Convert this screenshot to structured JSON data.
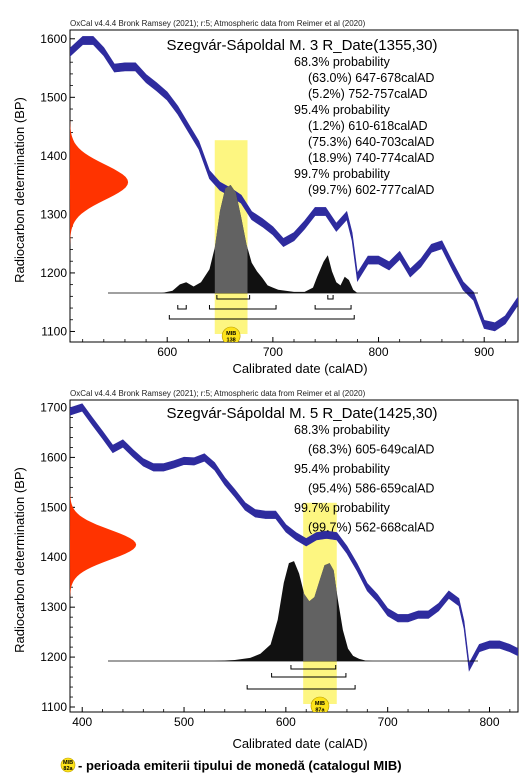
{
  "chart_data": [
    {
      "type": "area",
      "header": "OxCal v4.4.4 Bronk Ramsey (2021); r:5; Atmospheric data from Reimer et al (2020)",
      "title": "Szegvár-Sápoldal M. 3 R_Date(1355,30)",
      "probability_lines": [
        "68.3% probability",
        "(63.0%) 647-678calAD",
        "(5.2%) 752-757calAD",
        "95.4% probability",
        "(1.2%) 610-618calAD",
        "(75.3%) 640-703calAD",
        "(18.9%) 740-774calAD",
        "99.7% probability",
        "(99.7%) 602-777calAD"
      ],
      "xlabel": "Calibrated date (calAD)",
      "ylabel": "Radiocarbon determination (BP)",
      "xlim": [
        508,
        932
      ],
      "ylim": [
        1082,
        1615
      ],
      "xticks": [
        600,
        700,
        800,
        900
      ],
      "yticks": [
        1100,
        1200,
        1300,
        1400,
        1500,
        1600
      ],
      "radiocarbon_date": {
        "bp": 1355,
        "error": 30
      },
      "calibration_curve": {
        "color": "#2e2b9e",
        "x": [
          508,
          520,
          530,
          540,
          550,
          560,
          570,
          580,
          590,
          600,
          610,
          620,
          630,
          640,
          650,
          660,
          670,
          680,
          690,
          700,
          710,
          720,
          730,
          740,
          750,
          760,
          770,
          775,
          780,
          790,
          800,
          810,
          820,
          830,
          840,
          850,
          860,
          870,
          880,
          890,
          900,
          910,
          920,
          932
        ],
        "bp": [
          1577,
          1597,
          1597,
          1578,
          1550,
          1552,
          1552,
          1532,
          1518,
          1502,
          1478,
          1448,
          1418,
          1368,
          1348,
          1338,
          1326,
          1298,
          1286,
          1272,
          1252,
          1262,
          1282,
          1305,
          1305,
          1278,
          1298,
          1262,
          1193,
          1222,
          1222,
          1212,
          1230,
          1200,
          1217,
          1242,
          1248,
          1212,
          1178,
          1160,
          1112,
          1108,
          1120,
          1152
        ],
        "width_bp": [
          14,
          14,
          14,
          14,
          14,
          14,
          14,
          14,
          14,
          14,
          14,
          14,
          14,
          14,
          14,
          14,
          14,
          14,
          14,
          14,
          14,
          14,
          14,
          14,
          14,
          14,
          14,
          14,
          14,
          14,
          14,
          14,
          14,
          14,
          14,
          14,
          14,
          14,
          14,
          14,
          14,
          14,
          14,
          14
        ]
      },
      "c14_distribution": {
        "color": "#ff3300",
        "mean_bp": 1355,
        "sd_bp": 30,
        "max_width_years": 55
      },
      "calibrated_distribution": {
        "color": "#111111",
        "x": [
          595,
          605,
          612,
          618,
          625,
          632,
          640,
          645,
          650,
          655,
          660,
          665,
          670,
          675,
          680,
          685,
          690,
          695,
          700,
          705,
          712,
          720,
          730,
          738,
          742,
          748,
          752,
          756,
          760,
          764,
          768,
          772,
          776,
          780
        ],
        "y": [
          0,
          0.02,
          0.08,
          0.1,
          0.06,
          0.1,
          0.22,
          0.42,
          0.76,
          0.97,
          1.0,
          0.93,
          0.7,
          0.45,
          0.28,
          0.2,
          0.14,
          0.07,
          0.05,
          0.03,
          0.02,
          0.01,
          0.01,
          0.05,
          0.15,
          0.29,
          0.35,
          0.2,
          0.1,
          0.07,
          0.15,
          0.12,
          0.03,
          0
        ]
      },
      "range_brackets": [
        {
          "level": "68.3%",
          "ranges": [
            [
              647,
              678
            ],
            [
              752,
              757
            ]
          ]
        },
        {
          "level": "95.4%",
          "ranges": [
            [
              610,
              618
            ],
            [
              640,
              703
            ],
            [
              740,
              774
            ]
          ]
        },
        {
          "level": "99.7%",
          "ranges": [
            [
              602,
              777
            ]
          ]
        }
      ],
      "coin_period": {
        "color": "#fdf57a",
        "label_top": "MIB",
        "label_bottom": "138",
        "range": [
          645,
          676
        ]
      }
    },
    {
      "type": "area",
      "header": "OxCal v4.4.4 Bronk Ramsey (2021); r:5; Atmospheric data from Reimer et al (2020)",
      "title": "Szegvár-Sápoldal M. 5 R_Date(1425,30)",
      "probability_lines": [
        "68.3% probability",
        "(68.3%) 605-649calAD",
        "95.4% probability",
        "(95.4%) 586-659calAD",
        "99.7% probability",
        "(99.7%) 562-668calAD"
      ],
      "xlabel": "Calibrated date (calAD)",
      "ylabel": "Radiocarbon determination (BP)",
      "xlim": [
        388,
        828
      ],
      "ylim": [
        1090,
        1715
      ],
      "xticks": [
        400,
        500,
        600,
        700,
        800
      ],
      "yticks": [
        1100,
        1200,
        1300,
        1400,
        1500,
        1600,
        1700
      ],
      "radiocarbon_date": {
        "bp": 1425,
        "error": 30
      },
      "calibration_curve": {
        "color": "#2e2b9e",
        "x": [
          388,
          400,
          410,
          420,
          430,
          440,
          450,
          460,
          470,
          480,
          490,
          500,
          510,
          520,
          530,
          540,
          550,
          560,
          570,
          580,
          590,
          600,
          610,
          620,
          630,
          640,
          650,
          660,
          670,
          680,
          690,
          700,
          710,
          720,
          730,
          740,
          750,
          760,
          770,
          775,
          780,
          790,
          800,
          810,
          820,
          828
        ],
        "bp": [
          1692,
          1700,
          1672,
          1645,
          1617,
          1628,
          1608,
          1590,
          1580,
          1580,
          1586,
          1593,
          1592,
          1600,
          1582,
          1552,
          1528,
          1502,
          1488,
          1485,
          1485,
          1458,
          1442,
          1430,
          1442,
          1445,
          1442,
          1415,
          1380,
          1340,
          1318,
          1290,
          1278,
          1278,
          1285,
          1285,
          1300,
          1325,
          1310,
          1265,
          1180,
          1218,
          1225,
          1225,
          1218,
          1210
        ],
        "width_bp": [
          15,
          15,
          15,
          15,
          15,
          15,
          15,
          15,
          15,
          15,
          15,
          15,
          15,
          15,
          15,
          15,
          15,
          15,
          15,
          15,
          15,
          15,
          15,
          15,
          15,
          15,
          15,
          15,
          15,
          15,
          15,
          15,
          15,
          15,
          15,
          15,
          15,
          15,
          15,
          15,
          15,
          15,
          15,
          15,
          15,
          15
        ]
      },
      "c14_distribution": {
        "color": "#ff3300",
        "mean_bp": 1425,
        "sd_bp": 30,
        "max_width_years": 65
      },
      "calibrated_distribution": {
        "color": "#111111",
        "x": [
          530,
          550,
          565,
          575,
          585,
          592,
          598,
          603,
          608,
          613,
          618,
          623,
          628,
          633,
          638,
          643,
          647,
          651,
          656,
          661,
          666,
          672,
          678,
          685
        ],
        "y": [
          0,
          0.01,
          0.03,
          0.07,
          0.16,
          0.4,
          0.76,
          0.95,
          0.97,
          0.85,
          0.65,
          0.58,
          0.62,
          0.78,
          0.93,
          0.95,
          0.88,
          0.6,
          0.3,
          0.12,
          0.05,
          0.02,
          0.005,
          0
        ]
      },
      "range_brackets": [
        {
          "level": "68.3%",
          "ranges": [
            [
              605,
              649
            ]
          ]
        },
        {
          "level": "95.4%",
          "ranges": [
            [
              586,
              659
            ]
          ]
        },
        {
          "level": "99.7%",
          "ranges": [
            [
              562,
              668
            ]
          ]
        }
      ],
      "coin_period": {
        "color": "#fdf57a",
        "label_top": "MIB",
        "label_bottom": "87a",
        "range": [
          617,
          650
        ]
      }
    }
  ],
  "legend": {
    "badge_top": "MIB",
    "badge_bottom": "82a",
    "text": "- perioada emiterii tipului de monedă (catalogul MIB)"
  }
}
